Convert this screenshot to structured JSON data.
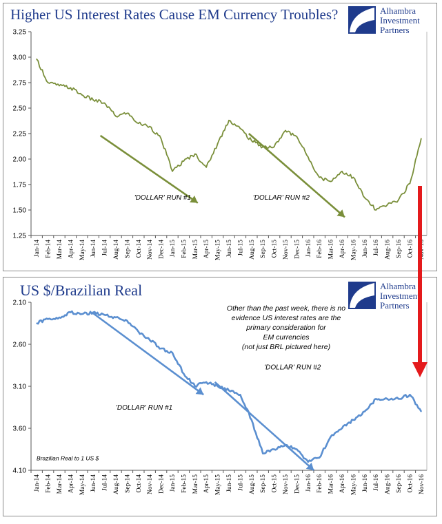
{
  "chart_data": [
    {
      "type": "line",
      "title": "Higher US Interest Rates Cause EM Currency Troubles?",
      "x": [
        "Jan-14",
        "Feb-14",
        "Mar-14",
        "Apr-14",
        "May-14",
        "Jun-14",
        "Jul-14",
        "Aug-14",
        "Sep-14",
        "Oct-14",
        "Nov-14",
        "Dec-14",
        "Jan-15",
        "Feb-15",
        "Mar-15",
        "Apr-15",
        "May-15",
        "Jun-15",
        "Jul-15",
        "Aug-15",
        "Sep-15",
        "Oct-15",
        "Nov-15",
        "Dec-15",
        "Jan-16",
        "Feb-16",
        "Mar-16",
        "Apr-16",
        "May-16",
        "Jun-16",
        "Jul-16",
        "Aug-16",
        "Sep-16",
        "Oct-16",
        "Nov-16"
      ],
      "series": [
        {
          "values": [
            2.98,
            2.75,
            2.72,
            2.7,
            2.63,
            2.58,
            2.55,
            2.42,
            2.45,
            2.35,
            2.32,
            2.2,
            1.88,
            1.98,
            2.05,
            1.92,
            2.15,
            2.38,
            2.3,
            2.18,
            2.12,
            2.12,
            2.28,
            2.22,
            2.02,
            1.82,
            1.78,
            1.88,
            1.82,
            1.62,
            1.5,
            1.55,
            1.6,
            1.76,
            2.2
          ]
        }
      ],
      "ylim": [
        1.25,
        3.25
      ],
      "yticks": [
        "3.25",
        "3.00",
        "2.75",
        "2.50",
        "2.25",
        "2.00",
        "1.75",
        "1.50",
        "1.25"
      ],
      "annotations": [
        "'DOLLAR' RUN #1",
        "'DOLLAR' RUN #2"
      ],
      "color": "#7a8f3a"
    },
    {
      "type": "line",
      "title": "US $/Brazilian Real",
      "x": [
        "Jan-14",
        "Feb-14",
        "Mar-14",
        "Apr-14",
        "May-14",
        "Jun-14",
        "Jul-14",
        "Aug-14",
        "Sep-14",
        "Oct-14",
        "Nov-14",
        "Dec-14",
        "Jan-15",
        "Feb-15",
        "Mar-15",
        "Apr-15",
        "May-15",
        "Jun-15",
        "Jul-15",
        "Aug-15",
        "Sep-15",
        "Oct-15",
        "Nov-15",
        "Dec-15",
        "Jan-16",
        "Feb-16",
        "Mar-16",
        "Apr-16",
        "May-16",
        "Jun-16",
        "Jul-16",
        "Aug-16",
        "Sep-16",
        "Oct-16",
        "Nov-16"
      ],
      "series": [
        {
          "values": [
            2.35,
            2.3,
            2.28,
            2.22,
            2.24,
            2.22,
            2.25,
            2.28,
            2.32,
            2.45,
            2.55,
            2.65,
            2.7,
            2.95,
            3.1,
            3.05,
            3.1,
            3.15,
            3.2,
            3.5,
            3.9,
            3.85,
            3.8,
            3.85,
            4.0,
            3.95,
            3.7,
            3.6,
            3.5,
            3.4,
            3.25,
            3.25,
            3.25,
            3.2,
            3.4
          ]
        }
      ],
      "ylim": [
        2.1,
        4.1
      ],
      "y_inverted": true,
      "yticks": [
        "2.10",
        "2.60",
        "3.10",
        "3.60",
        "4.10"
      ],
      "annotations": [
        "'DOLLAR' RUN #1",
        "'DOLLAR' RUN #2",
        "Brazilian Real to 1 US $"
      ],
      "note": [
        "Other than the past week, there is no",
        "evidence US interest rates are the",
        "primary consideration for",
        "EM currencies",
        "(not just BRL pictured here)"
      ],
      "color": "#5b8fd0"
    }
  ],
  "logo": {
    "line1": "Alhambra",
    "line2": "Investment",
    "line3": "Partners"
  },
  "arrow_color": "#e41a1c"
}
